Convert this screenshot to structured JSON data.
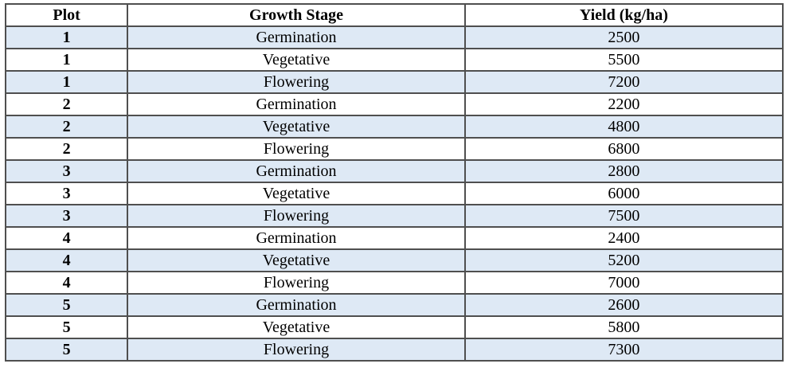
{
  "table": {
    "columns": {
      "plot": "Plot",
      "stage": "Growth Stage",
      "yield": "Yield (kg/ha)"
    },
    "rows": [
      {
        "plot": "1",
        "stage": "Germination",
        "yield": "2500"
      },
      {
        "plot": "1",
        "stage": "Vegetative",
        "yield": "5500"
      },
      {
        "plot": "1",
        "stage": "Flowering",
        "yield": "7200"
      },
      {
        "plot": "2",
        "stage": "Germination",
        "yield": "2200"
      },
      {
        "plot": "2",
        "stage": "Vegetative",
        "yield": "4800"
      },
      {
        "plot": "2",
        "stage": "Flowering",
        "yield": "6800"
      },
      {
        "plot": "3",
        "stage": "Germination",
        "yield": "2800"
      },
      {
        "plot": "3",
        "stage": "Vegetative",
        "yield": "6000"
      },
      {
        "plot": "3",
        "stage": "Flowering",
        "yield": "7500"
      },
      {
        "plot": "4",
        "stage": "Germination",
        "yield": "2400"
      },
      {
        "plot": "4",
        "stage": "Vegetative",
        "yield": "5200"
      },
      {
        "plot": "4",
        "stage": "Flowering",
        "yield": "7000"
      },
      {
        "plot": "5",
        "stage": "Germination",
        "yield": "2600"
      },
      {
        "plot": "5",
        "stage": "Vegetative",
        "yield": "5800"
      },
      {
        "plot": "5",
        "stage": "Flowering",
        "yield": "7300"
      }
    ]
  },
  "colors": {
    "row_alt_bg": "#DEE9F5",
    "border_inner": "#4f4f4f",
    "border_outer": "#2b2b2b",
    "text": "#000000",
    "page_bg": "#ffffff"
  }
}
